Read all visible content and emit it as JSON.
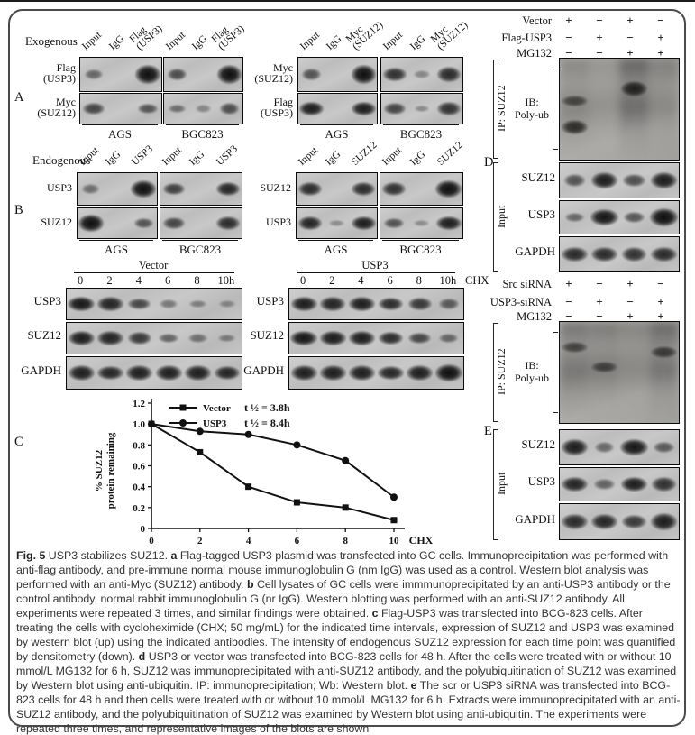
{
  "figure": {
    "panel_a": {
      "letter": "A",
      "group_label": "Exogenous",
      "left": {
        "lanes": [
          "Input",
          "IgG",
          "Flag\n(USP3)"
        ],
        "cell_lines": [
          "AGS",
          "BGC823"
        ],
        "rows": [
          {
            "label": "Flag\n(USP3)",
            "bands": [
              [
                0.35,
                0,
                1.0
              ],
              [
                0.55,
                0,
                1.0
              ]
            ]
          },
          {
            "label": "Myc\n(SUZ12)",
            "bands": [
              [
                0.6,
                0,
                0.5
              ],
              [
                0.3,
                0.15,
                0.55
              ]
            ]
          }
        ]
      },
      "right": {
        "lanes": [
          "Input",
          "IgG",
          "Myc\n(SUZ12)"
        ],
        "cell_lines": [
          "AGS",
          "BGC823"
        ],
        "rows": [
          {
            "label": "Myc\n(SUZ12)",
            "bands": [
              [
                0.5,
                0,
                1.0
              ],
              [
                0.75,
                0.15,
                0.8
              ]
            ]
          },
          {
            "label": "Flag\n(USP3)",
            "bands": [
              [
                0.9,
                0,
                0.9
              ],
              [
                0.6,
                0.12,
                0.75
              ]
            ]
          }
        ]
      }
    },
    "panel_b": {
      "letter": "B",
      "group_label": "Endogenous",
      "left": {
        "lanes": [
          "Input",
          "IgG",
          "USP3"
        ],
        "cell_lines": [
          "AGS",
          "BGC823"
        ],
        "rows": [
          {
            "label": "USP3",
            "bands": [
              [
                0.3,
                0,
                1.0
              ],
              [
                0.65,
                0,
                0.85
              ]
            ]
          },
          {
            "label": "SUZ12",
            "bands": [
              [
                1.0,
                0,
                0.5
              ],
              [
                0.6,
                0,
                0.8
              ]
            ]
          }
        ]
      },
      "right": {
        "lanes": [
          "Input",
          "IgG",
          "SUZ12"
        ],
        "cell_lines": [
          "AGS",
          "BGC823"
        ],
        "rows": [
          {
            "label": "SUZ12",
            "bands": [
              [
                0.8,
                0,
                0.8
              ],
              [
                0.75,
                0,
                1.0
              ]
            ]
          },
          {
            "label": "USP3",
            "bands": [
              [
                0.85,
                0.1,
                0.9
              ],
              [
                0.5,
                0.1,
                0.9
              ]
            ]
          }
        ]
      }
    },
    "chx": {
      "left": {
        "title": "Vector",
        "timepoints": [
          "0",
          "2",
          "4",
          "6",
          "8",
          "10h"
        ],
        "rows": [
          {
            "label": "USP3",
            "bands": [
              0.95,
              0.85,
              0.6,
              0.25,
              0.2,
              0.12
            ]
          },
          {
            "label": "SUZ12",
            "bands": [
              0.9,
              0.85,
              0.7,
              0.4,
              0.3,
              0.2
            ]
          },
          {
            "label": "GAPDH",
            "bands": [
              0.9,
              0.85,
              0.9,
              0.9,
              0.9,
              0.85
            ]
          }
        ]
      },
      "right": {
        "title": "USP3",
        "timepoints": [
          "0",
          "2",
          "4",
          "6",
          "8",
          "10h"
        ],
        "chx_label": "CHX",
        "rows": [
          {
            "label": "USP3",
            "bands": [
              0.9,
              0.85,
              0.9,
              0.8,
              0.7,
              0.45
            ]
          },
          {
            "label": "SUZ12",
            "bands": [
              0.95,
              0.9,
              0.9,
              0.8,
              0.6,
              0.35
            ]
          },
          {
            "label": "GAPDH",
            "bands": [
              0.9,
              0.9,
              0.9,
              0.85,
              0.9,
              1.0
            ]
          }
        ]
      }
    },
    "panel_c": {
      "letter": "C"
    },
    "panel_d": {
      "letter": "D",
      "conditions": [
        {
          "label": "Vector",
          "values": [
            "+",
            "−",
            "+",
            "−"
          ]
        },
        {
          "label": "Flag-USP3",
          "values": [
            "−",
            "+",
            "−",
            "+"
          ]
        },
        {
          "label": "MG132",
          "values": [
            "−",
            "−",
            "+",
            "+"
          ]
        }
      ],
      "ip_label": "IP: SUZ12",
      "ib_label": "IB:\nPoly-ub",
      "smear_lanes": [
        0.5,
        0.3,
        0.95,
        0.55
      ],
      "smear_bands": [
        {
          "lane": 0,
          "y": 0.42,
          "i": 0.5
        },
        {
          "lane": 0,
          "y": 0.68,
          "i": 0.8
        },
        {
          "lane": 2,
          "y": 0.3,
          "i": 0.9
        }
      ],
      "input_label": "Input",
      "input_rows": [
        {
          "label": "SUZ12",
          "bands": [
            0.5,
            0.9,
            0.55,
            0.9
          ]
        },
        {
          "label": "USP3",
          "bands": [
            0.35,
            0.95,
            0.5,
            1.0
          ]
        },
        {
          "label": "GAPDH",
          "bands": [
            0.8,
            0.8,
            0.75,
            0.8
          ]
        }
      ]
    },
    "panel_e": {
      "letter": "E",
      "conditions": [
        {
          "label": "Src siRNA",
          "values": [
            "+",
            "−",
            "+",
            "−"
          ]
        },
        {
          "label": "USP3-siRNA",
          "values": [
            "−",
            "+",
            "−",
            "+"
          ]
        },
        {
          "label": "MG132",
          "values": [
            "−",
            "−",
            "+",
            "+"
          ]
        }
      ],
      "ip_label": "IP: SUZ12",
      "ib_label": "IB:\nPoly-ub",
      "smear_lanes": [
        0.75,
        0.65,
        0.5,
        0.85
      ],
      "smear_bands": [
        {
          "lane": 0,
          "y": 0.25,
          "i": 0.5
        },
        {
          "lane": 1,
          "y": 0.45,
          "i": 0.5
        },
        {
          "lane": 3,
          "y": 0.3,
          "i": 0.6
        }
      ],
      "input_label": "Input",
      "input_rows": [
        {
          "label": "SUZ12",
          "bands": [
            0.9,
            0.35,
            0.95,
            0.45
          ]
        },
        {
          "label": "USP3",
          "bands": [
            0.85,
            0.4,
            0.9,
            0.75
          ]
        },
        {
          "label": "GAPDH",
          "bands": [
            0.8,
            0.85,
            0.7,
            0.9
          ]
        }
      ]
    },
    "caption": {
      "segments": [
        {
          "text": "Fig. 5",
          "bold": true
        },
        {
          "text": " USP3 stabilizes SUZ12. "
        },
        {
          "text": "a",
          "bold": true
        },
        {
          "text": " Flag-tagged USP3 plasmid was transfected into GC cells. Immunoprecipitation was performed with anti-flag antibody, and pre-immune normal mouse immunoglobulin G (nm IgG) was used as a control. Western blot analysis was performed with an anti-Myc (SUZ12) antibody. "
        },
        {
          "text": "b",
          "bold": true
        },
        {
          "text": " Cell lysates of GC cells were immmunoprecipitated by an anti-USP3 antibody or the control antibody, normal rabbit immunoglobulin G (nr IgG). Western blotting was performed with an anti-SUZ12 antibody. All experiments were repeated 3 times, and similar findings were obtained. "
        },
        {
          "text": "c",
          "bold": true
        },
        {
          "text": " Flag-USP3 was transfected into BCG-823 cells. After treating the cells with cycloheximide (CHX; 50 mg/mL) for the indicated time intervals, expression of SUZ12 and USP3 was examined by western blot (up) using the indicated antibodies. The intensity of endogenous SUZ12 expression for each time point was quantified by densitometry (down). "
        },
        {
          "text": "d",
          "bold": true
        },
        {
          "text": " USP3 or vector was transfected into BCG-823 cells for 48 h. After the cells were treated with or without 10 mmol/L MG132 for 6 h, SUZ12 was immunoprecipitated with anti-SUZ12 antibody, and the polyubiquitination of SUZ12 was examined by Western blot using anti-ubiquitin. IP: immunoprecipitation; Wb: Western blot. "
        },
        {
          "text": "e",
          "bold": true
        },
        {
          "text": " The scr or USP3 siRNA was transfected into BCG-823 cells for 48 h and then cells were treated with or without 10 mmol/L MG132 for 6 h. Extracts were immunoprecipitated with an anti-SUZ12 antibody, and the polyubiquitination of SUZ12 was examined by Western blot using anti-ubiquitin. The experiments were repeated three times, and representative images of the blots are shown"
        }
      ]
    }
  },
  "chart_data": {
    "type": "line",
    "x": [
      0,
      2,
      4,
      6,
      8,
      10
    ],
    "series": [
      {
        "name": "Vector",
        "marker": "square",
        "values": [
          1.0,
          0.73,
          0.4,
          0.25,
          0.2,
          0.08
        ],
        "half_life_label": "t ½ = 3.8h"
      },
      {
        "name": "USP3",
        "marker": "circle",
        "values": [
          1.0,
          0.93,
          0.9,
          0.8,
          0.65,
          0.3
        ],
        "half_life_label": "t ½ = 8.4h"
      }
    ],
    "ylabel_lines": [
      "% SUZ12",
      "protein remaining"
    ],
    "xlabel": "CHX",
    "ylim": [
      0,
      1.2
    ],
    "yticks": [
      0,
      0.2,
      0.4,
      0.6,
      0.8,
      1.0,
      1.2
    ],
    "xticks": [
      0,
      2,
      4,
      6,
      8,
      10
    ],
    "legend_position": "top-left",
    "grid": false,
    "line_color": "#111111"
  }
}
